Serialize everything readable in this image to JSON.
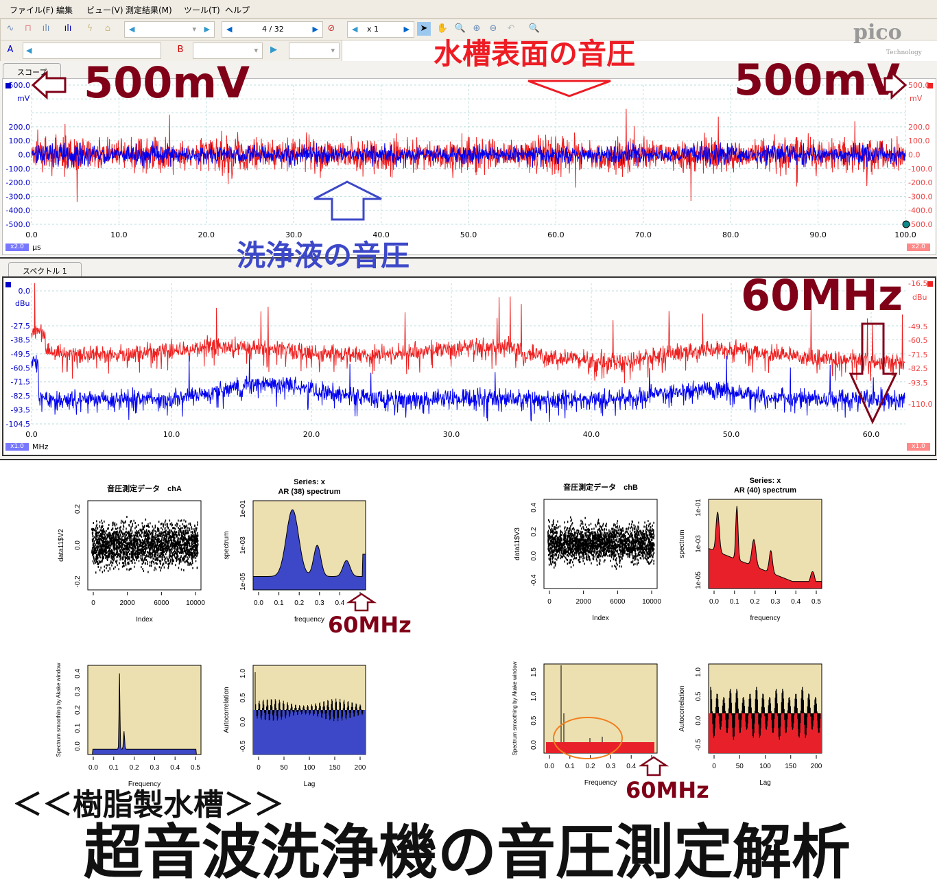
{
  "menu": [
    "ファイル(F)",
    "編集",
    "ビュー(V)",
    "測定結果(M)",
    "ツール(T)",
    "ヘルプ"
  ],
  "toolbar": {
    "page": "4 / 32",
    "zoom": "x 1",
    "channel_a": "A",
    "channel_b": "B",
    "logo": "pico",
    "logo_sub": "Technology"
  },
  "scope": {
    "tab": "スコープ",
    "unit": "mV",
    "xunit": "μs",
    "xscale_left": "x2.0",
    "xscale_right": "x2.0",
    "yticks": [
      "500.0",
      "200.0",
      "100.0",
      "0.0",
      "-100.0",
      "-200.0",
      "-300.0",
      "-400.0",
      "-500.0"
    ],
    "yticks_right": [
      "500.0",
      "200.0",
      "100.0",
      "0.0",
      "-100.0",
      "-200.0",
      "-300.0",
      "-400.0",
      "-500.0"
    ],
    "xticks": [
      "0.0",
      "10.0",
      "20.0",
      "30.0",
      "40.0",
      "50.0",
      "60.0",
      "70.0",
      "80.0",
      "90.0",
      "100.0"
    ],
    "colors": {
      "chA": "#0000ee",
      "chB": "#ee2020"
    }
  },
  "spectrum": {
    "tab": "スペクトル 1",
    "unit": "dBu",
    "xunit": "MHz",
    "xscale_left": "x1.0",
    "xscale_right": "x1.0",
    "yticks": [
      "0.0",
      "-27.5",
      "-38.5",
      "-49.5",
      "-60.5",
      "-71.5",
      "-82.5",
      "-93.5",
      "-104.5"
    ],
    "yticks_right": [
      "-16.5",
      "-49.5",
      "-60.5",
      "-71.5",
      "-82.5",
      "-93.5",
      "-110.0"
    ],
    "unit_right": "dBu",
    "xticks": [
      "0.0",
      "10.0",
      "20.0",
      "30.0",
      "40.0",
      "50.0",
      "60.0"
    ]
  },
  "annotations": {
    "v_left": "500mV",
    "v_right": "500mV",
    "surface": "水槽表面の音圧",
    "liquid": "洗浄液の音圧",
    "mhz_top": "60MHz",
    "mhz_a": "60MHz",
    "mhz_b": "60MHz",
    "subtitle": "＜＜樹脂製水槽＞＞",
    "title": "超音波洗浄機の音圧測定解析"
  },
  "r_plots": {
    "a_scatter": {
      "title": "音圧測定データ　chA",
      "xlabel": "Index",
      "ylabel": "data11$V2",
      "xticks": [
        "0",
        "2000",
        "6000",
        "10000"
      ],
      "yticks": [
        "0.2",
        "0.0",
        "-0.2"
      ]
    },
    "a_ar": {
      "title": "Series: x\nAR (38) spectrum",
      "xlabel": "frequency",
      "ylabel": "spectrum",
      "xticks": [
        "0.0",
        "0.1",
        "0.2",
        "0.3",
        "0.4",
        "0.5"
      ],
      "yticks": [
        "1e-01",
        "1e-03",
        "1e-05"
      ]
    },
    "a_smooth": {
      "xlabel": "Frequency",
      "ylabel": "Spectrum smoothing by Akake window",
      "xticks": [
        "0.0",
        "0.1",
        "0.2",
        "0.3",
        "0.4",
        "0.5"
      ],
      "yticks": [
        "0.4",
        "0.3",
        "0.2",
        "0.1",
        "0.0"
      ]
    },
    "a_acf": {
      "xlabel": "Lag",
      "ylabel": "Autocorrelation",
      "xticks": [
        "0",
        "50",
        "100",
        "150",
        "200"
      ],
      "yticks": [
        "1.0",
        "0.5",
        "0.0",
        "-0.5"
      ]
    },
    "b_scatter": {
      "title": "音圧測定データ　chB",
      "xlabel": "Index",
      "ylabel": "data11$V3",
      "xticks": [
        "0",
        "2000",
        "6000",
        "10000"
      ],
      "yticks": [
        "0.4",
        "0.2",
        "0.0",
        "-0.4"
      ]
    },
    "b_ar": {
      "title": "Series: x\nAR (40) spectrum",
      "xlabel": "frequency",
      "ylabel": "spectrum",
      "xticks": [
        "0.0",
        "0.1",
        "0.2",
        "0.3",
        "0.4",
        "0.5"
      ],
      "yticks": [
        "1e-01",
        "1e-03",
        "1e-05"
      ]
    },
    "b_smooth": {
      "xlabel": "Frequency",
      "ylabel": "Spectrum smoothing by Akake window",
      "xticks": [
        "0.0",
        "0.1",
        "0.2",
        "0.3",
        "0.4",
        "0.5"
      ],
      "yticks": [
        "1.5",
        "1.0",
        "0.5",
        "0.0"
      ]
    },
    "b_acf": {
      "xlabel": "Lag",
      "ylabel": "Autocorrelation",
      "xticks": [
        "0",
        "50",
        "100",
        "150",
        "200"
      ],
      "yticks": [
        "1.0",
        "0.5",
        "0.0",
        "-0.5"
      ]
    }
  },
  "r_colors": {
    "bg": "#ede0b0",
    "a_fill": "#3d48c8",
    "b_fill": "#e8202a"
  }
}
